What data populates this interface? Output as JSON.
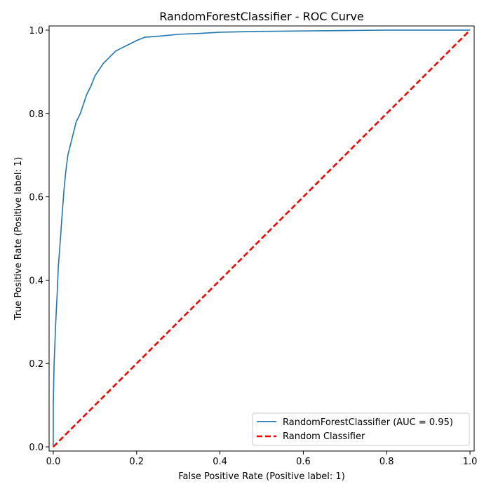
{
  "chart_data": {
    "type": "line",
    "title": "RandomForestClassifier - ROC Curve",
    "xlabel": "False Positive Rate (Positive label: 1)",
    "ylabel": "True Positive Rate (Positive label: 1)",
    "xlim": [
      -0.01,
      1.01
    ],
    "ylim": [
      -0.01,
      1.01
    ],
    "xticks": [
      0.0,
      0.2,
      0.4,
      0.6,
      0.8,
      1.0
    ],
    "xtick_labels": [
      "0.0",
      "0.2",
      "0.4",
      "0.6",
      "0.8",
      "1.0"
    ],
    "yticks": [
      0.0,
      0.2,
      0.4,
      0.6,
      0.8,
      1.0
    ],
    "ytick_labels": [
      "0.0",
      "0.2",
      "0.4",
      "0.6",
      "0.8",
      "1.0"
    ],
    "grid": false,
    "legend_position": "lower-right",
    "series": [
      {
        "name": "RandomForestClassifier (AUC = 0.95)",
        "color": "#1f77b4",
        "style": "solid",
        "x": [
          0.0,
          0.0,
          0.002,
          0.004,
          0.006,
          0.008,
          0.01,
          0.012,
          0.015,
          0.018,
          0.02,
          0.023,
          0.026,
          0.03,
          0.035,
          0.04,
          0.045,
          0.05,
          0.055,
          0.06,
          0.065,
          0.07,
          0.075,
          0.08,
          0.09,
          0.1,
          0.11,
          0.12,
          0.13,
          0.14,
          0.15,
          0.16,
          0.17,
          0.18,
          0.19,
          0.2,
          0.22,
          0.25,
          0.3,
          0.35,
          0.4,
          0.5,
          0.6,
          0.7,
          0.8,
          0.9,
          1.0
        ],
        "y": [
          0.0,
          0.1,
          0.2,
          0.25,
          0.3,
          0.34,
          0.38,
          0.43,
          0.47,
          0.51,
          0.54,
          0.58,
          0.62,
          0.66,
          0.7,
          0.72,
          0.74,
          0.76,
          0.78,
          0.79,
          0.8,
          0.815,
          0.83,
          0.845,
          0.865,
          0.89,
          0.905,
          0.92,
          0.93,
          0.94,
          0.95,
          0.955,
          0.96,
          0.965,
          0.97,
          0.975,
          0.983,
          0.985,
          0.99,
          0.992,
          0.995,
          0.997,
          0.998,
          0.999,
          1.0,
          1.0,
          1.0
        ]
      },
      {
        "name": "Random Classifier",
        "color": "#ff0000",
        "style": "dashed",
        "x": [
          0.0,
          1.0
        ],
        "y": [
          0.0,
          1.0
        ]
      }
    ]
  }
}
